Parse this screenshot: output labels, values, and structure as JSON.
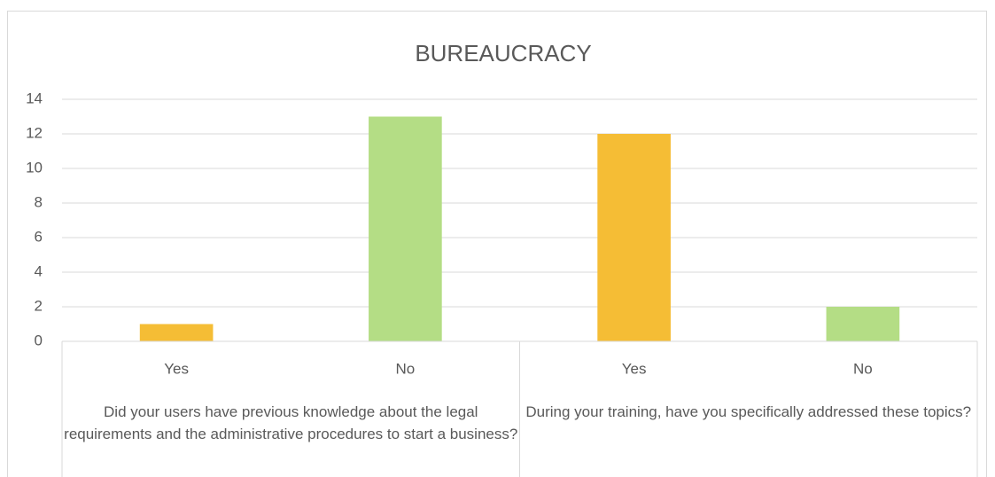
{
  "chart_data": {
    "type": "bar",
    "title": "BUREAUCRACY",
    "groups": [
      {
        "label": "Did your users have previous knowledge about the legal requirements and the administrative procedures to start a business?",
        "categories": [
          "Yes",
          "No"
        ],
        "values": [
          1,
          13
        ],
        "colors": [
          "#f5bd35",
          "#b4dd85"
        ]
      },
      {
        "label": "During your training, have you specifically addressed these topics?",
        "categories": [
          "Yes",
          "No"
        ],
        "values": [
          12,
          2
        ],
        "colors": [
          "#f5bd35",
          "#b4dd85"
        ]
      }
    ],
    "ylim": [
      0,
      14
    ],
    "yticks": [
      0,
      2,
      4,
      6,
      8,
      10,
      12,
      14
    ],
    "grid": true
  }
}
